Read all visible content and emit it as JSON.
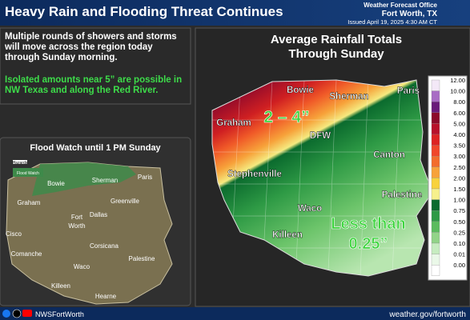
{
  "header": {
    "title": "Heavy Rain and Flooding Threat Continues",
    "office": "Weather Forecast Office",
    "location": "Fort Worth, TX",
    "issued": "Issued April 19, 2025 4:30 AM CT"
  },
  "summary": {
    "paragraphs": [
      "Multiple rounds of showers and storms will move across the region today through Sunday morning.",
      "Isolated amounts near 5” are possible in NW Texas and along the Red River."
    ]
  },
  "flood_watch": {
    "title": "Flood Watch until 1 PM Sunday",
    "legend_heading": "Hazards",
    "legend_item": "Flood Watch",
    "cities": [
      "Bowie",
      "Sherman",
      "Paris",
      "Graham",
      "Greenville",
      "Fort",
      "Worth",
      "Dallas",
      "Cisco",
      "Corsicana",
      "Comanche",
      "Waco",
      "Palestine",
      "Killeen",
      "Hearne"
    ]
  },
  "rainfall_map": {
    "title": [
      "Average Rainfall Totals",
      "Through Sunday"
    ],
    "annotations": [
      "2 – 4”",
      "Less than",
      "0.25”"
    ],
    "cities": [
      "Bowie",
      "Sherman",
      "Paris",
      "Graham",
      "DFW",
      "Canton",
      "Stephenville",
      "Palestine",
      "Waco",
      "Killeen"
    ],
    "legend": [
      {
        "label": "12.00",
        "color": "#f3e8f7"
      },
      {
        "label": "10.00",
        "color": "#a86cc4"
      },
      {
        "label": "8.00",
        "color": "#6a1b7a"
      },
      {
        "label": "6.00",
        "color": "#8c0a2a"
      },
      {
        "label": "5.00",
        "color": "#b8102a"
      },
      {
        "label": "4.00",
        "color": "#dd2222"
      },
      {
        "label": "3.50",
        "color": "#f0462a"
      },
      {
        "label": "3.00",
        "color": "#f36c2c"
      },
      {
        "label": "2.50",
        "color": "#f7a23a"
      },
      {
        "label": "2.00",
        "color": "#f8d23c"
      },
      {
        "label": "1.50",
        "color": "#f6f08c"
      },
      {
        "label": "1.00",
        "color": "#0b6b2e"
      },
      {
        "label": "0.75",
        "color": "#2e9a45"
      },
      {
        "label": "0.50",
        "color": "#5bbb5e"
      },
      {
        "label": "0.25",
        "color": "#92d488"
      },
      {
        "label": "0.10",
        "color": "#c6ecc0"
      },
      {
        "label": "0.01",
        "color": "#eaf8e8"
      },
      {
        "label": "0.00",
        "color": "#ffffff"
      }
    ]
  },
  "footer": {
    "handle": "NWSFortWorth",
    "url": "weather.gov/fortworth"
  }
}
